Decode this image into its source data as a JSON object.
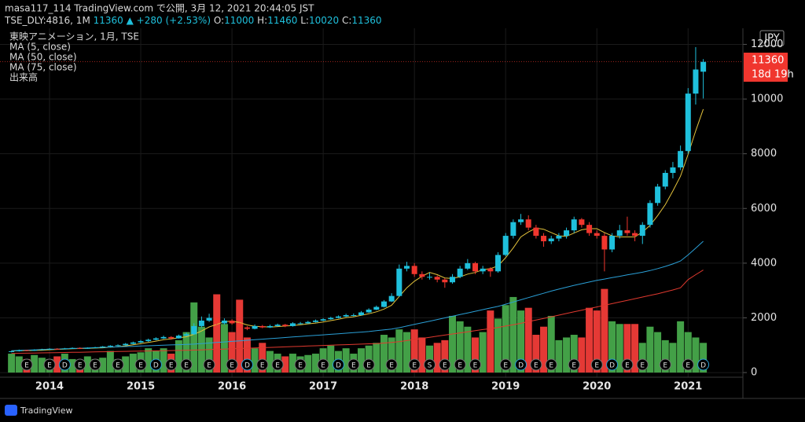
{
  "header": {
    "line1": "masa117_114 TradingView.com で公開, 3月 12, 2021 20:44:05 JST",
    "symbol": "TSE_DLY:4816, 1M",
    "change": "▲ +280 (+2.53%)",
    "ohlc_labels": [
      "O:",
      "H:",
      "L:",
      "C:"
    ]
  },
  "footer": {
    "brand": "TradingView"
  },
  "chart_data": {
    "type": "candlestick",
    "title": "東映アニメーション, 1月, TSE",
    "currency": "JPY",
    "countdown": "18d 19h",
    "categories": [
      null,
      null,
      null,
      null,
      null,
      "2014",
      null,
      null,
      null,
      null,
      null,
      null,
      null,
      null,
      null,
      null,
      null,
      "2015",
      null,
      null,
      null,
      null,
      null,
      null,
      null,
      null,
      null,
      null,
      null,
      "2016",
      null,
      null,
      null,
      null,
      null,
      null,
      null,
      null,
      null,
      null,
      null,
      "2017",
      null,
      null,
      null,
      null,
      null,
      null,
      null,
      null,
      null,
      null,
      null,
      "2018",
      null,
      null,
      null,
      null,
      null,
      null,
      null,
      null,
      null,
      null,
      null,
      "2019",
      null,
      null,
      null,
      null,
      null,
      null,
      null,
      null,
      null,
      null,
      null,
      "2020",
      null,
      null,
      null,
      null,
      null,
      null,
      null,
      null,
      null,
      null,
      null,
      "2021",
      null,
      null
    ],
    "open": [
      760,
      780,
      820,
      800,
      830,
      850,
      870,
      860,
      880,
      900,
      880,
      900,
      920,
      950,
      980,
      1000,
      1050,
      1100,
      1150,
      1200,
      1250,
      1300,
      1250,
      1350,
      1400,
      1700,
      1900,
      2000,
      1800,
      1900,
      1800,
      1650,
      1600,
      1700,
      1650,
      1700,
      1750,
      1700,
      1800,
      1800,
      1850,
      1900,
      1950,
      2000,
      2050,
      2100,
      2100,
      2200,
      2300,
      2400,
      2600,
      2800,
      3800,
      3900,
      3600,
      3500,
      3500,
      3400,
      3300,
      3500,
      3800,
      4000,
      3700,
      3800,
      3700,
      4300,
      5000,
      5500,
      5600,
      5300,
      5000,
      4800,
      4900,
      5000,
      5200,
      5600,
      5400,
      5100,
      5000,
      4500,
      5000,
      5200,
      5100,
      5000,
      5400,
      6200,
      6800,
      7300,
      7500,
      8100,
      10200,
      11000
    ],
    "high": [
      800,
      840,
      830,
      850,
      870,
      890,
      890,
      900,
      920,
      920,
      920,
      940,
      970,
      1000,
      1030,
      1080,
      1130,
      1190,
      1240,
      1290,
      1350,
      1330,
      1390,
      1460,
      1800,
      2050,
      2150,
      2050,
      1980,
      1950,
      1830,
      1700,
      1760,
      1740,
      1750,
      1790,
      1780,
      1840,
      1850,
      1890,
      1940,
      1990,
      2040,
      2090,
      2150,
      2160,
      2250,
      2350,
      2450,
      2650,
      2900,
      3950,
      4050,
      4000,
      3700,
      3650,
      3550,
      3450,
      3600,
      3900,
      4150,
      4050,
      3900,
      3850,
      4400,
      5100,
      5600,
      5800,
      5750,
      5400,
      5100,
      5000,
      5100,
      5300,
      5700,
      5650,
      5500,
      5200,
      5100,
      5100,
      5400,
      5700,
      5200,
      5500,
      6300,
      6900,
      7400,
      7700,
      8300,
      10400,
      11900,
      11460
    ],
    "low": [
      740,
      770,
      780,
      790,
      820,
      830,
      840,
      850,
      870,
      860,
      870,
      890,
      910,
      930,
      960,
      990,
      1030,
      1080,
      1120,
      1180,
      1230,
      1200,
      1240,
      1320,
      1380,
      1650,
      1850,
      1750,
      1760,
      1750,
      1580,
      1550,
      1580,
      1620,
      1630,
      1680,
      1660,
      1680,
      1760,
      1780,
      1830,
      1880,
      1930,
      1980,
      2030,
      2050,
      2080,
      2180,
      2280,
      2380,
      2580,
      2780,
      3700,
      3500,
      3400,
      3400,
      3300,
      3100,
      3250,
      3450,
      3750,
      3600,
      3600,
      3500,
      3650,
      4250,
      4900,
      5400,
      5200,
      4900,
      4600,
      4700,
      4800,
      4900,
      5100,
      5300,
      5000,
      4900,
      3700,
      4400,
      4900,
      5000,
      4800,
      4700,
      5300,
      6100,
      6700,
      7100,
      7400,
      8000,
      9800,
      10020
    ],
    "close": [
      780,
      820,
      800,
      830,
      850,
      870,
      860,
      880,
      900,
      880,
      900,
      920,
      950,
      980,
      1000,
      1050,
      1100,
      1150,
      1200,
      1250,
      1300,
      1250,
      1350,
      1400,
      1700,
      1900,
      2000,
      1800,
      1900,
      1800,
      1650,
      1600,
      1700,
      1650,
      1700,
      1750,
      1700,
      1800,
      1800,
      1850,
      1900,
      1950,
      2000,
      2050,
      2100,
      2100,
      2200,
      2300,
      2400,
      2600,
      2800,
      3800,
      3900,
      3600,
      3500,
      3500,
      3400,
      3300,
      3500,
      3800,
      4000,
      3700,
      3800,
      3700,
      4300,
      5000,
      5500,
      5600,
      5300,
      5000,
      4800,
      4900,
      5000,
      5200,
      5600,
      5400,
      5100,
      5000,
      4500,
      5000,
      5200,
      5100,
      5000,
      5400,
      6200,
      6800,
      7300,
      7500,
      8100,
      10200,
      11080,
      11360
    ],
    "volume_name": "出来高",
    "volume": [
      700,
      600,
      500,
      650,
      550,
      500,
      600,
      700,
      500,
      450,
      600,
      500,
      550,
      800,
      500,
      600,
      700,
      750,
      900,
      800,
      900,
      700,
      1200,
      1500,
      2600,
      1700,
      1300,
      2900,
      1800,
      1500,
      2700,
      1300,
      900,
      1100,
      800,
      700,
      600,
      700,
      600,
      650,
      700,
      900,
      1000,
      800,
      900,
      700,
      900,
      1000,
      1100,
      1400,
      1300,
      1600,
      1500,
      1600,
      1300,
      1000,
      1100,
      1200,
      2100,
      1900,
      1700,
      1300,
      1500,
      2300,
      2000,
      2500,
      2800,
      2300,
      2400,
      1400,
      1700,
      2100,
      1200,
      1300,
      1400,
      1300,
      2400,
      2300,
      3100,
      1900,
      1800,
      1800,
      1800,
      1100,
      1700,
      1500,
      1200,
      1100,
      1900,
      1500,
      1300,
      1100
    ],
    "volume_ylim": [
      0,
      12700
    ],
    "events": [
      null,
      null,
      "E",
      null,
      null,
      "E",
      null,
      "D",
      null,
      "E",
      null,
      "E",
      null,
      null,
      "E",
      null,
      null,
      "E",
      null,
      "D",
      null,
      "E",
      null,
      "E",
      null,
      null,
      "E",
      null,
      null,
      "E",
      null,
      "D",
      null,
      "E",
      null,
      "E",
      null,
      null,
      "E",
      null,
      null,
      "E",
      null,
      "D",
      null,
      "E",
      null,
      "E",
      null,
      null,
      "E",
      null,
      null,
      "E",
      null,
      "S",
      null,
      "E",
      null,
      "E",
      null,
      "E",
      null,
      null,
      null,
      "E",
      null,
      "D",
      null,
      "E",
      null,
      "E",
      null,
      null,
      "E",
      null,
      null,
      "E",
      null,
      "D",
      null,
      "E",
      null,
      "E",
      null,
      null,
      "E",
      null,
      null,
      "E",
      null,
      "D"
    ],
    "ma_series": [
      {
        "name": "MA (5, close)",
        "color": "#e3c23b",
        "values": [
          790,
          800,
          800,
          810,
          816,
          834,
          846,
          858,
          874,
          878,
          888,
          896,
          906,
          926,
          946,
          976,
          1016,
          1056,
          1100,
          1150,
          1200,
          1230,
          1270,
          1310,
          1400,
          1520,
          1670,
          1760,
          1860,
          1880,
          1830,
          1740,
          1690,
          1680,
          1660,
          1680,
          1700,
          1720,
          1750,
          1780,
          1810,
          1850,
          1900,
          1950,
          2010,
          2040,
          2090,
          2150,
          2220,
          2320,
          2460,
          2780,
          3100,
          3340,
          3520,
          3660,
          3580,
          3460,
          3440,
          3500,
          3600,
          3660,
          3760,
          3800,
          3900,
          4200,
          4560,
          4960,
          5140,
          5280,
          5240,
          5120,
          5000,
          4980,
          5100,
          5220,
          5260,
          5260,
          5120,
          5000,
          4960,
          4960,
          4960,
          5140,
          5380,
          5740,
          6140,
          6640,
          7180,
          7980,
          8840,
          9630
        ]
      },
      {
        "name": "MA (50, close)",
        "color": "#2a9fd6",
        "values": [
          800,
          810,
          820,
          830,
          840,
          850,
          860,
          870,
          880,
          890,
          900,
          910,
          920,
          930,
          940,
          950,
          960,
          970,
          980,
          990,
          1000,
          1010,
          1020,
          1030,
          1040,
          1060,
          1080,
          1100,
          1120,
          1140,
          1160,
          1180,
          1200,
          1220,
          1240,
          1260,
          1280,
          1300,
          1320,
          1340,
          1360,
          1380,
          1400,
          1420,
          1440,
          1460,
          1480,
          1500,
          1530,
          1560,
          1590,
          1640,
          1700,
          1760,
          1820,
          1880,
          1940,
          2000,
          2060,
          2120,
          2180,
          2240,
          2300,
          2360,
          2420,
          2500,
          2580,
          2660,
          2740,
          2820,
          2900,
          2980,
          3050,
          3120,
          3190,
          3250,
          3310,
          3370,
          3420,
          3470,
          3520,
          3570,
          3620,
          3670,
          3730,
          3800,
          3880,
          3970,
          4080,
          4300,
          4550,
          4800
        ]
      },
      {
        "name": "MA (75, close)",
        "color": "#e0392f",
        "values": [
          700,
          705,
          710,
          715,
          720,
          725,
          730,
          735,
          740,
          745,
          750,
          755,
          760,
          765,
          770,
          775,
          780,
          785,
          790,
          795,
          800,
          805,
          810,
          815,
          820,
          830,
          840,
          850,
          860,
          870,
          880,
          890,
          900,
          910,
          920,
          930,
          940,
          950,
          960,
          970,
          980,
          990,
          1000,
          1010,
          1020,
          1030,
          1040,
          1050,
          1060,
          1080,
          1100,
          1130,
          1170,
          1210,
          1250,
          1290,
          1330,
          1370,
          1410,
          1450,
          1490,
          1530,
          1570,
          1610,
          1650,
          1700,
          1750,
          1800,
          1860,
          1920,
          1980,
          2040,
          2100,
          2160,
          2220,
          2280,
          2340,
          2400,
          2460,
          2520,
          2580,
          2640,
          2700,
          2760,
          2820,
          2880,
          2950,
          3020,
          3100,
          3400,
          3580,
          3750
        ]
      }
    ],
    "up_color": "#1fc0dc",
    "down_color": "#f0362e",
    "volume_up_color": "#43a047",
    "volume_down_color": "#e53935",
    "ylim": [
      -170,
      12530
    ],
    "yticks": [
      0,
      2000,
      4000,
      6000,
      8000,
      10000,
      12000
    ],
    "grid": true
  }
}
